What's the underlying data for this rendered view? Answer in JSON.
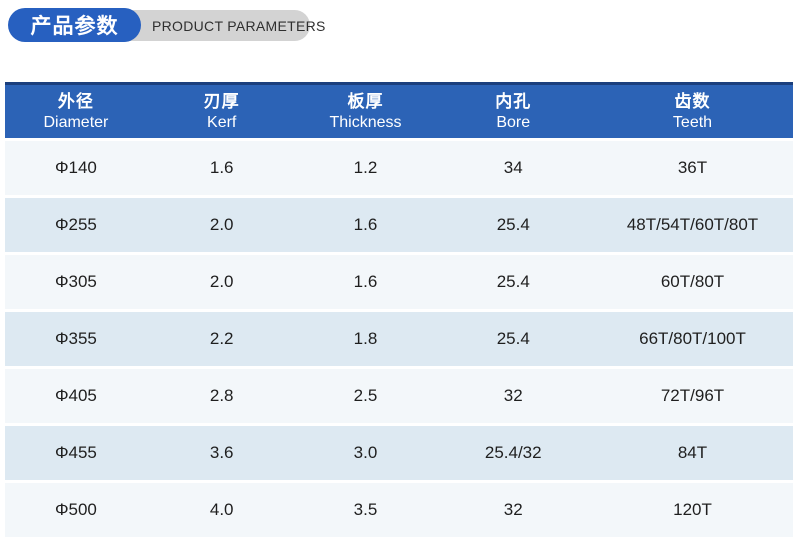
{
  "header_badge": {
    "title_zh": "产品参数",
    "title_en": "PRODUCT PARAMETERS"
  },
  "colors": {
    "accent_blue": "#2c63b6",
    "pill_blue": "#2760c0",
    "header_border": "#1b3f7d",
    "row_light": "#f3f7fa",
    "row_shaded": "#dde9f2",
    "pill_grey": "#d3d3d3",
    "cell_text": "#1f1f1f"
  },
  "table": {
    "columns": [
      {
        "zh": "外径",
        "en": "Diameter"
      },
      {
        "zh": "刃厚",
        "en": "Kerf"
      },
      {
        "zh": "板厚",
        "en": "Thickness"
      },
      {
        "zh": "内孔",
        "en": "Bore"
      },
      {
        "zh": "齿数",
        "en": "Teeth"
      }
    ],
    "rows": [
      [
        "Φ140",
        "1.6",
        "1.2",
        "34",
        "36T"
      ],
      [
        "Φ255",
        "2.0",
        "1.6",
        "25.4",
        "48T/54T/60T/80T"
      ],
      [
        "Φ305",
        "2.0",
        "1.6",
        "25.4",
        "60T/80T"
      ],
      [
        "Φ355",
        "2.2",
        "1.8",
        "25.4",
        "66T/80T/100T"
      ],
      [
        "Φ405",
        "2.8",
        "2.5",
        "32",
        "72T/96T"
      ],
      [
        "Φ455",
        "3.6",
        "3.0",
        "25.4/32",
        "84T"
      ],
      [
        "Φ500",
        "4.0",
        "3.5",
        "32",
        "120T"
      ]
    ]
  }
}
